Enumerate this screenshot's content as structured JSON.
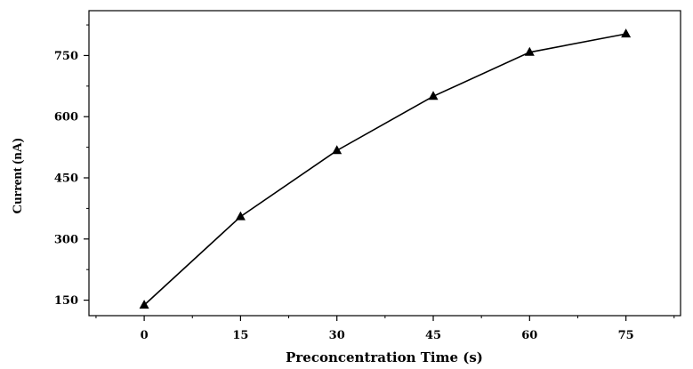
{
  "chart_data": {
    "type": "line",
    "xlabel": "Preconcentration Time (s)",
    "ylabel": "Current (nA)",
    "x": [
      0,
      15,
      30,
      45,
      60,
      75
    ],
    "series": [
      {
        "values": [
          138,
          355,
          517,
          650,
          758,
          803
        ],
        "marker": "triangle",
        "color": "#000000"
      }
    ],
    "xticks": [
      "0",
      "15",
      "30",
      "45",
      "60",
      "75"
    ],
    "yticks": [
      "150",
      "300",
      "450",
      "600",
      "750"
    ],
    "xlim": [
      -8.6,
      83.5
    ],
    "ylim": [
      112,
      860
    ],
    "grid": false,
    "legend": "none"
  }
}
